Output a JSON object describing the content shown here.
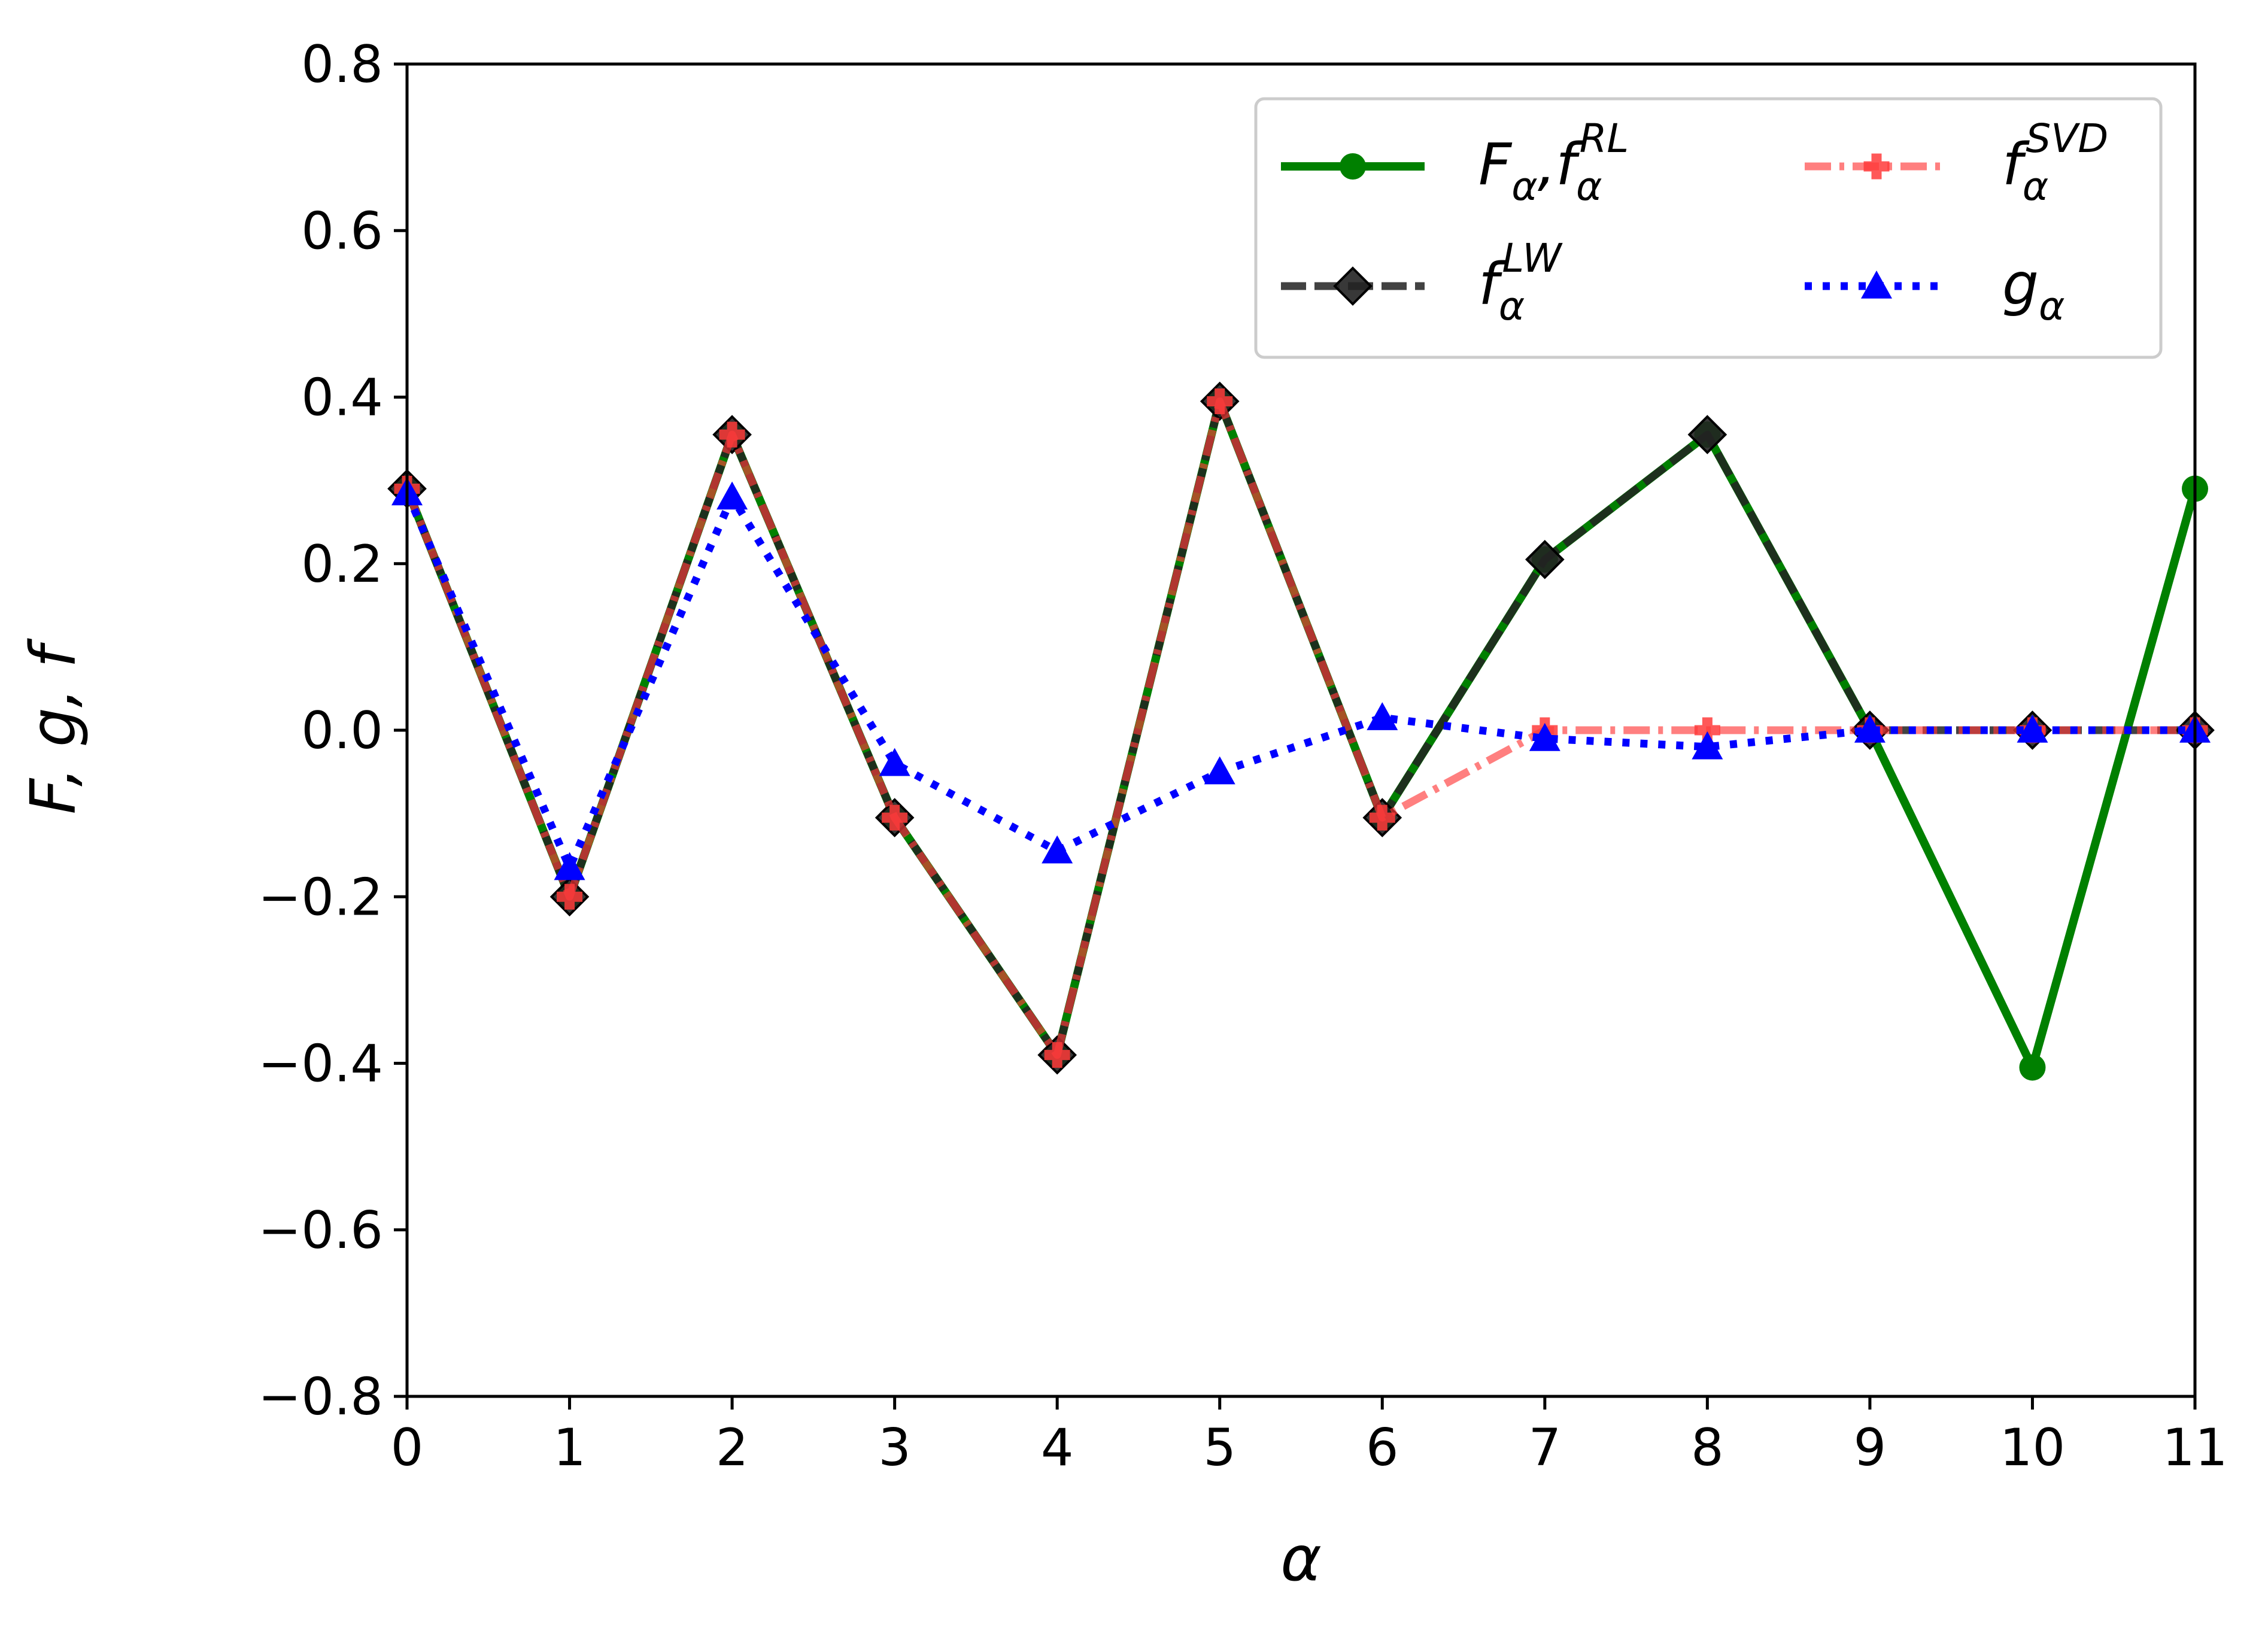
{
  "chart_data": {
    "type": "line",
    "xlabel": "α",
    "ylabel": "F, g, f",
    "xlim": [
      0,
      11
    ],
    "ylim": [
      -0.8,
      0.8
    ],
    "xticks": [
      0,
      1,
      2,
      3,
      4,
      5,
      6,
      7,
      8,
      9,
      10,
      11
    ],
    "yticks": [
      -0.8,
      -0.6,
      -0.4,
      -0.2,
      0.0,
      0.2,
      0.4,
      0.6,
      0.8
    ],
    "ytick_labels": [
      "−0.8",
      "−0.6",
      "−0.4",
      "−0.2",
      "0.0",
      "0.2",
      "0.4",
      "0.6",
      "0.8"
    ],
    "grid": false,
    "legend": {
      "placement": "top-right",
      "columns": 2,
      "entries": [
        {
          "series": "F",
          "base": "F",
          "sub": "α",
          "sup": "",
          "extra": ",f",
          "extra_sub": "α",
          "extra_sup": "RL"
        },
        {
          "series": "f_svd",
          "base": "f",
          "sub": "α",
          "sup": "SVD"
        },
        {
          "series": "f_lw",
          "base": "f",
          "sub": "α",
          "sup": "LW"
        },
        {
          "series": "g",
          "base": "g",
          "sub": "α",
          "sup": ""
        }
      ]
    },
    "x": [
      0,
      1,
      2,
      3,
      4,
      5,
      6,
      7,
      8,
      9,
      10,
      11
    ],
    "series": [
      {
        "id": "F",
        "color": "#008000",
        "marker": "circle",
        "line_style": "solid",
        "values": [
          0.29,
          -0.2,
          0.355,
          -0.105,
          -0.39,
          0.395,
          -0.105,
          0.205,
          0.355,
          0.0,
          -0.405,
          0.29
        ]
      },
      {
        "id": "f_lw",
        "color": "#222222",
        "marker": "diamond",
        "line_style": "dashed",
        "values": [
          0.29,
          -0.2,
          0.355,
          -0.105,
          -0.39,
          0.395,
          -0.105,
          0.205,
          0.355,
          0.0,
          0.0,
          0.0
        ]
      },
      {
        "id": "f_svd",
        "color": "#ff3b3b",
        "marker": "plus",
        "line_style": "dashdot",
        "values": [
          0.29,
          -0.2,
          0.355,
          -0.105,
          -0.39,
          0.395,
          -0.105,
          0.0,
          0.0,
          0.0,
          0.0,
          0.0
        ]
      },
      {
        "id": "g",
        "color": "#0000ff",
        "marker": "triangle",
        "line_style": "dotted",
        "values": [
          0.285,
          -0.165,
          0.28,
          -0.04,
          -0.145,
          -0.05,
          0.015,
          -0.01,
          -0.02,
          0.0,
          0.0,
          0.0
        ]
      }
    ]
  }
}
